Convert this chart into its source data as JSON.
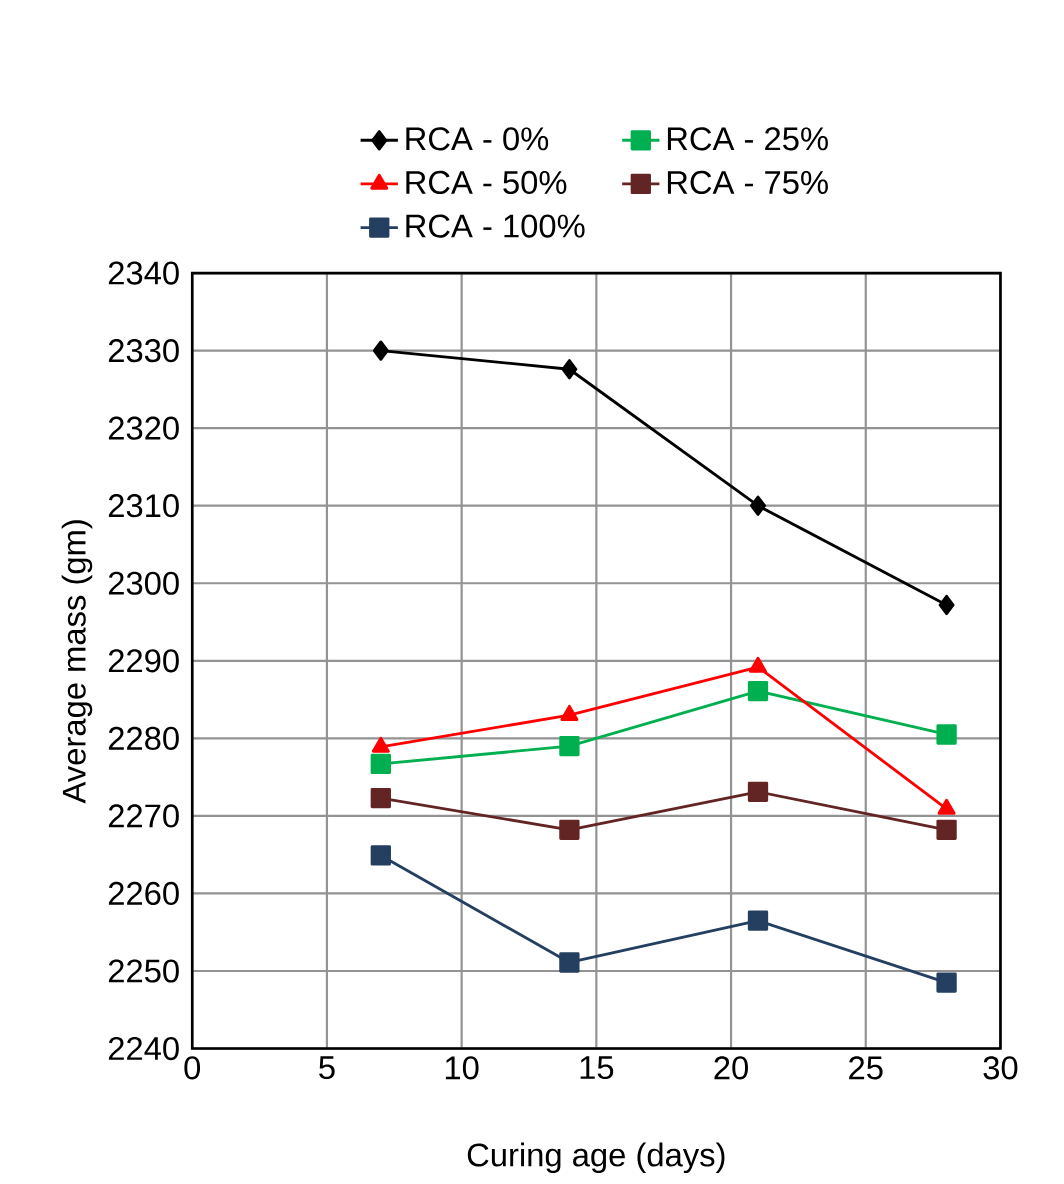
{
  "chart_data": {
    "type": "line",
    "xlabel": "Curing age (days)",
    "ylabel": "Average mass (gm)",
    "x": [
      7,
      14,
      21,
      28
    ],
    "series": [
      {
        "name": "RCA - 0%",
        "color": "#000000",
        "marker": "diamond",
        "values": [
          2330,
          2327.6,
          2310,
          2297.2
        ]
      },
      {
        "name": "RCA - 25%",
        "color": "#00b050",
        "marker": "square",
        "values": [
          2276.7,
          2279,
          2286.1,
          2280.5
        ]
      },
      {
        "name": "RCA - 50%",
        "color": "#ff0000",
        "marker": "triangle",
        "values": [
          2278.9,
          2283,
          2289.2,
          2270.9
        ]
      },
      {
        "name": "RCA - 75%",
        "color": "#632523",
        "marker": "square",
        "values": [
          2272.3,
          2268.2,
          2273.1,
          2268.2
        ]
      },
      {
        "name": "RCA - 100%",
        "color": "#243f60",
        "marker": "square",
        "values": [
          2264.9,
          2251.1,
          2256.5,
          2248.5
        ]
      }
    ],
    "xlim": [
      0,
      30
    ],
    "xticks": [
      0,
      5,
      10,
      15,
      20,
      25,
      30
    ],
    "ylim": [
      2240,
      2340
    ],
    "yticks": [
      2240,
      2250,
      2260,
      2270,
      2280,
      2290,
      2300,
      2310,
      2320,
      2330,
      2340
    ],
    "grid": true,
    "legend": "top",
    "line_style": "solid"
  }
}
